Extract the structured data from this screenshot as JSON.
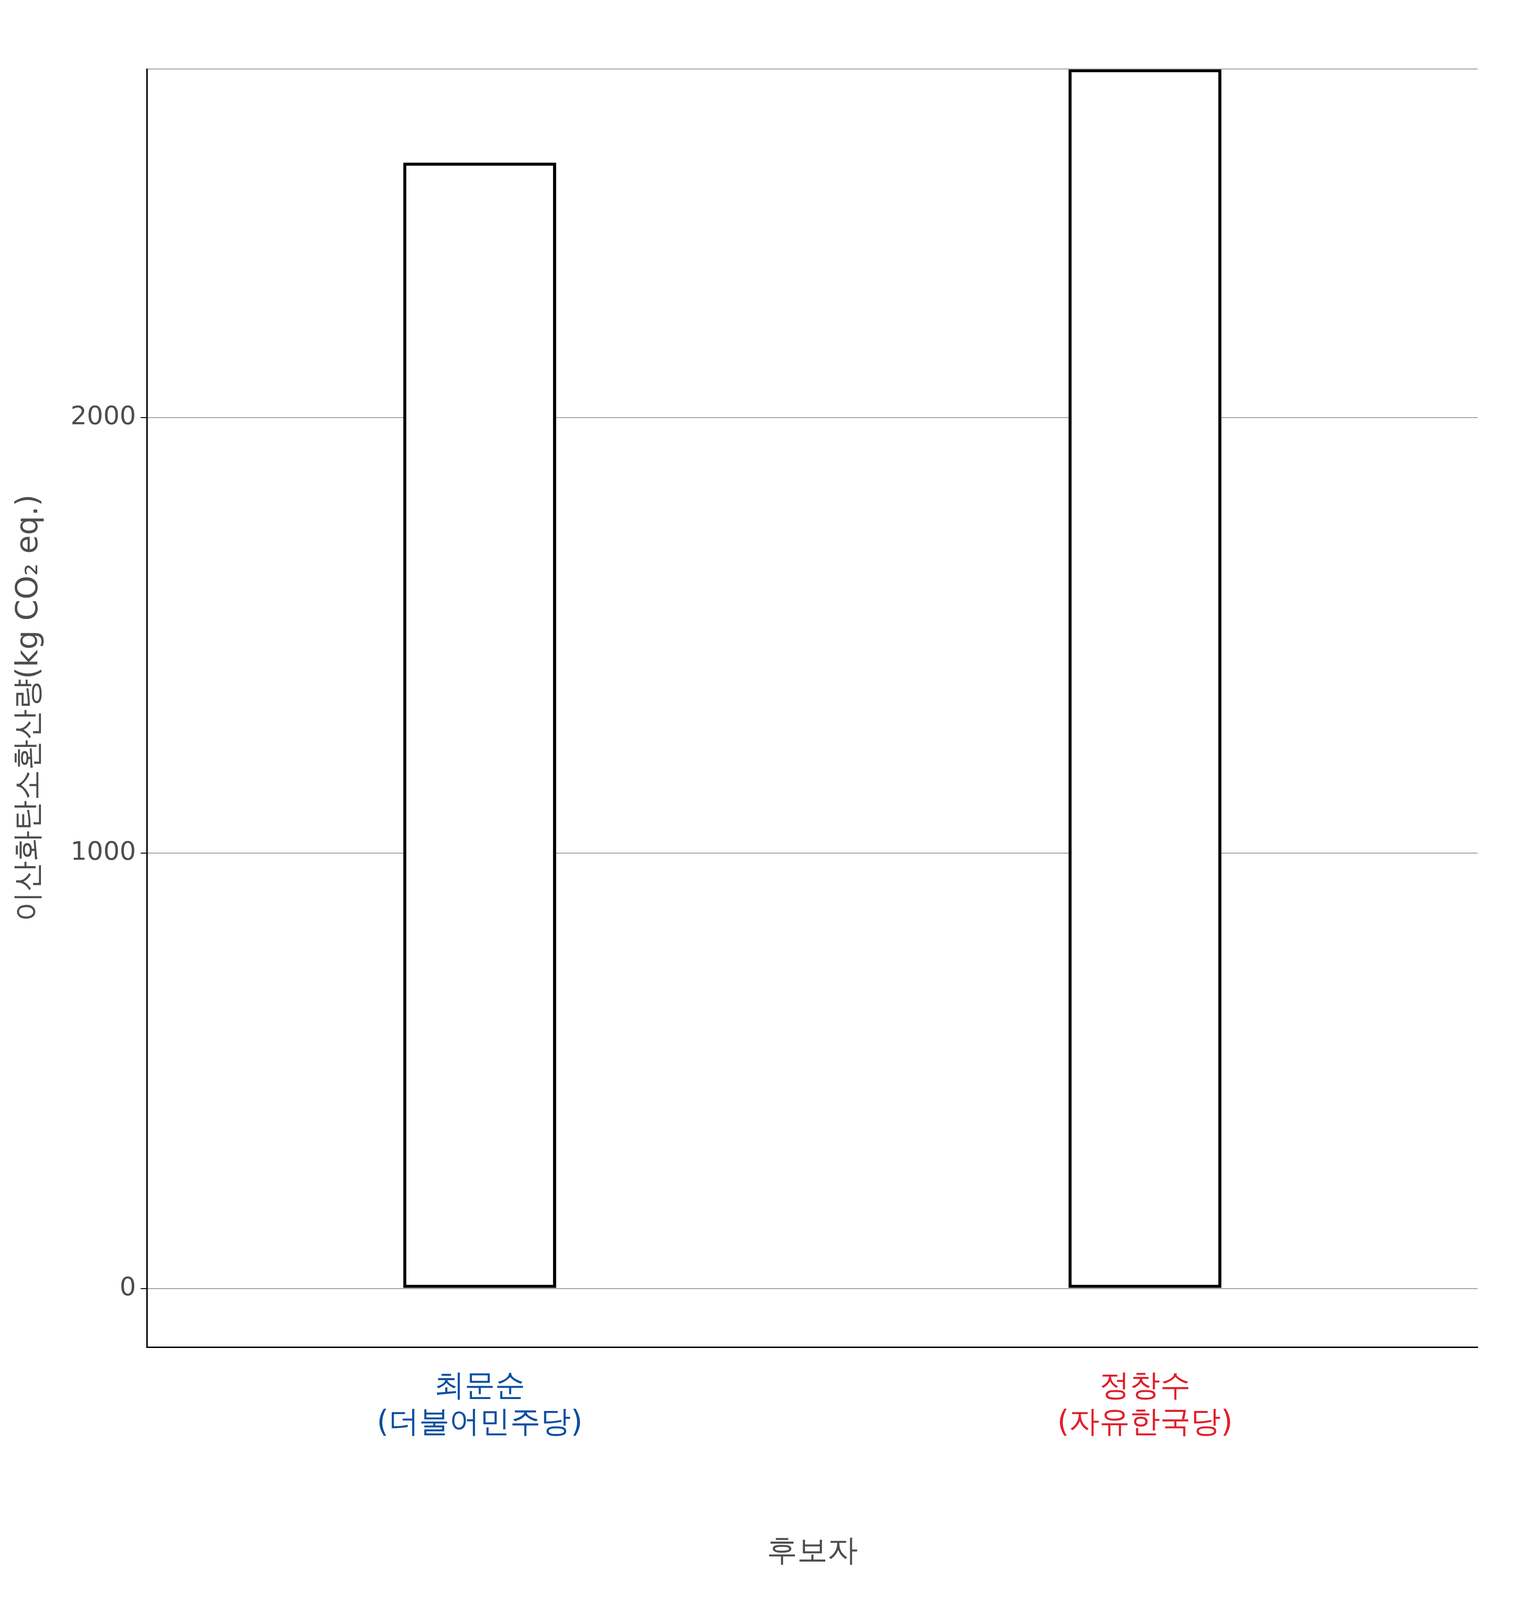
{
  "chart_data": {
    "type": "bar",
    "categories": [
      [
        "최문순",
        "(더불어민주당)"
      ],
      [
        "정창수",
        "(자유한국당)"
      ]
    ],
    "values": [
      2585,
      2800
    ],
    "color": "#ffffff",
    "x_label": "후보자",
    "y_label": "이산화탄소환산량(kg CO₂ eq.)",
    "ylim": [
      -135,
      2800
    ],
    "yticks": [
      0,
      1000,
      2000
    ],
    "grid": true,
    "legend": "none"
  }
}
